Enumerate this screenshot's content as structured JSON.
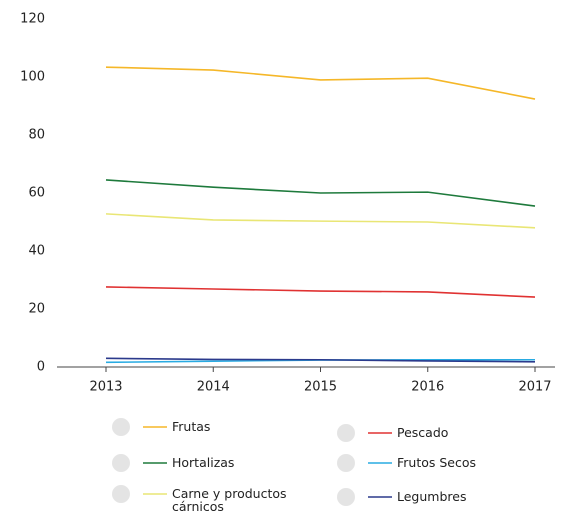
{
  "chart_data": {
    "type": "line",
    "categories": [
      "2013",
      "2014",
      "2015",
      "2016",
      "2017"
    ],
    "series": [
      {
        "name": "Frutas",
        "color": "#f5b728",
        "values": [
          103.4,
          102.4,
          99,
          99.6,
          92.4
        ]
      },
      {
        "name": "Pescado",
        "color": "#e03232",
        "values": [
          27.6,
          26.9,
          26.2,
          25.9,
          24.1
        ]
      },
      {
        "name": "Hortalizas",
        "color": "#1e7a3c",
        "values": [
          64.5,
          62,
          60,
          60.3,
          55.5
        ]
      },
      {
        "name": "Frutos Secos",
        "color": "#29abe2",
        "values": [
          1.6,
          2,
          2.4,
          2.5,
          2.5
        ]
      },
      {
        "name": "Carne y productos cárnicos",
        "color": "#e9e675",
        "values": [
          52.8,
          50.7,
          50.3,
          50,
          48
        ]
      },
      {
        "name": "Legumbres",
        "color": "#2b3a8c",
        "values": [
          3,
          2.6,
          2.5,
          2.1,
          1.8
        ]
      }
    ],
    "ylim": [
      0,
      120
    ],
    "yticks": [
      0,
      20,
      40,
      60,
      80,
      100,
      120
    ],
    "grid": false
  }
}
